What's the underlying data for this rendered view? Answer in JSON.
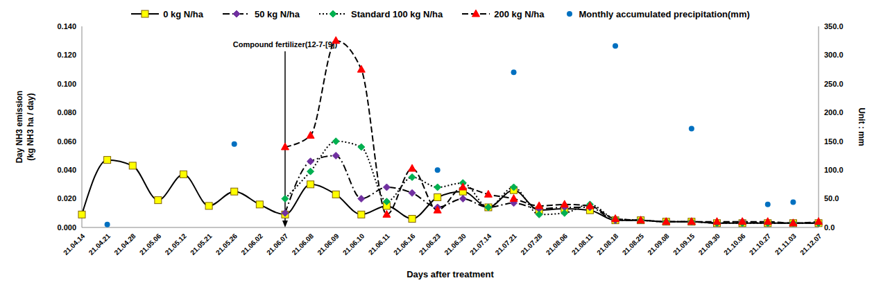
{
  "chart_data": {
    "type": "line",
    "x_label": "Days after treatment",
    "y_label": [
      "Day NH3 emission",
      "(kg NH3 ha / day)"
    ],
    "y2_label": "Unit : mm",
    "annotation": "Compound fertilizer(12-7-[9])",
    "annotation_x": "21.06.07",
    "legend": "top",
    "grid": false,
    "categories": [
      "21.04.14",
      "21.04.21",
      "21.04.28",
      "21.05.06",
      "21.05.12",
      "21.05.21",
      "21.05.26",
      "21.06.02",
      "21.06.07",
      "21.06.08",
      "21.06.09",
      "21.06.10",
      "21.06.11",
      "21.06.16",
      "21.06.23",
      "21.06.30",
      "21.07.14",
      "21.07.21",
      "21.07.28",
      "21.08.06",
      "21.08.11",
      "21.08.18",
      "21.08.25",
      "21.09.08",
      "21.09.15",
      "21.09.30",
      "21.10.06",
      "21.10.27",
      "21.11.03",
      "21.12.07"
    ],
    "ylim": [
      0,
      0.14
    ],
    "yticks": [
      {
        "value": 0,
        "label": "0.000"
      },
      {
        "value": 0.02,
        "label": "0.020"
      },
      {
        "value": 0.04,
        "label": "0.040"
      },
      {
        "value": 0.06,
        "label": "0.060"
      },
      {
        "value": 0.08,
        "label": "0.080"
      },
      {
        "value": 0.1,
        "label": "0.100"
      },
      {
        "value": 0.12,
        "label": "0.120"
      },
      {
        "value": 0.14,
        "label": "0.140"
      }
    ],
    "y2lim": [
      0,
      350
    ],
    "y2ticks": [
      {
        "value": 0,
        "label": "0.0"
      },
      {
        "value": 50,
        "label": "50.0"
      },
      {
        "value": 100,
        "label": "100.0"
      },
      {
        "value": 150,
        "label": "150.0"
      },
      {
        "value": 200,
        "label": "200.0"
      },
      {
        "value": 250,
        "label": "250.0"
      },
      {
        "value": 300,
        "label": "300.0"
      },
      {
        "value": 350,
        "label": "350.0"
      }
    ],
    "series": [
      {
        "name": "0 kg N/ha",
        "color": "#ffff00",
        "marker": "square",
        "line_style": "solid",
        "values": [
          0.009,
          0.047,
          0.043,
          0.019,
          0.037,
          0.015,
          0.025,
          0.016,
          0.009,
          0.03,
          0.023,
          0.009,
          0.015,
          0.006,
          0.021,
          0.025,
          0.014,
          0.026,
          0.012,
          0.013,
          0.012,
          0.005,
          0.005,
          0.004,
          0.004,
          0.003,
          0.003,
          0.003,
          0.003,
          0.003
        ]
      },
      {
        "name": "50 kg N/ha",
        "color": "#7030a0",
        "marker": "diamond",
        "line_style": "dashdot",
        "values": [
          null,
          null,
          null,
          null,
          null,
          null,
          null,
          null,
          0.01,
          0.046,
          0.05,
          0.02,
          0.028,
          0.024,
          0.014,
          0.02,
          0.014,
          0.017,
          0.013,
          0.014,
          0.014,
          0.005,
          0.005,
          0.004,
          0.004,
          0.003,
          0.004,
          0.003,
          0.003,
          0.003
        ]
      },
      {
        "name": "Standard 100 kg N/ha",
        "color": "#00b050",
        "marker": "diamond",
        "line_style": "dotted",
        "values": [
          null,
          null,
          null,
          null,
          null,
          null,
          null,
          null,
          0.02,
          0.039,
          0.06,
          0.056,
          0.018,
          0.035,
          0.028,
          0.031,
          0.014,
          0.028,
          0.009,
          0.01,
          0.016,
          0.006,
          0.005,
          0.004,
          0.004,
          0.003,
          0.003,
          0.003,
          0.003,
          0.003
        ]
      },
      {
        "name": "200 kg N/ha",
        "color": "#ff0000",
        "marker": "triangle",
        "line_style": "dashed",
        "values": [
          null,
          null,
          null,
          null,
          null,
          null,
          null,
          null,
          0.056,
          0.064,
          0.13,
          0.11,
          0.009,
          0.041,
          0.012,
          0.028,
          0.023,
          0.02,
          0.015,
          0.016,
          0.015,
          0.006,
          0.005,
          0.004,
          0.004,
          0.004,
          0.004,
          0.004,
          0.003,
          0.004
        ]
      },
      {
        "name": "Monthly accumulated precipitation(mm)",
        "type": "scatter",
        "axis": "y2",
        "color": "#0070c0",
        "marker": "circle",
        "values": [
          null,
          5,
          null,
          null,
          null,
          null,
          145,
          null,
          null,
          null,
          null,
          null,
          null,
          null,
          100,
          null,
          null,
          270,
          null,
          null,
          null,
          316,
          null,
          null,
          172,
          null,
          null,
          40,
          44,
          null
        ]
      }
    ]
  }
}
